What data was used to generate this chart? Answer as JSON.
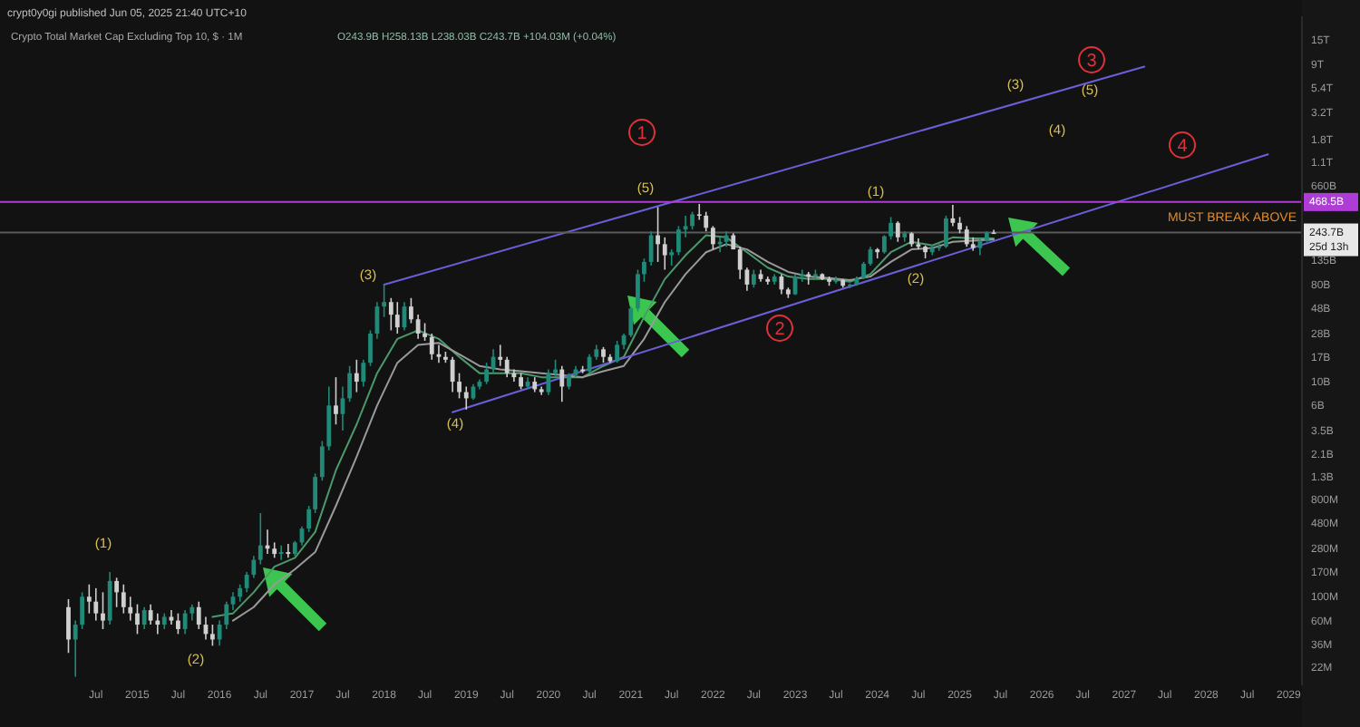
{
  "chart_data": {
    "type": "candlestick",
    "title": "Crypto Total Market Cap Excluding Top 10, $ · 1M",
    "subtitle": "crypt0y0gi published Jun 05, 2025 21:40 UTC+10",
    "log": true,
    "xlim": [
      "2013-05",
      "2029-03"
    ],
    "xticks": [
      {
        "value": "2014-07",
        "label": "Jul"
      },
      {
        "value": "2015-01",
        "label": "2015"
      },
      {
        "value": "2015-07",
        "label": "Jul"
      },
      {
        "value": "2016-01",
        "label": "2016"
      },
      {
        "value": "2016-07",
        "label": "Jul"
      },
      {
        "value": "2017-01",
        "label": "2017"
      },
      {
        "value": "2017-07",
        "label": "Jul"
      },
      {
        "value": "2018-01",
        "label": "2018"
      },
      {
        "value": "2018-07",
        "label": "Jul"
      },
      {
        "value": "2019-01",
        "label": "2019"
      },
      {
        "value": "2019-07",
        "label": "Jul"
      },
      {
        "value": "2020-01",
        "label": "2020"
      },
      {
        "value": "2020-07",
        "label": "Jul"
      },
      {
        "value": "2021-01",
        "label": "2021"
      },
      {
        "value": "2021-07",
        "label": "Jul"
      },
      {
        "value": "2022-01",
        "label": "2022"
      },
      {
        "value": "2022-07",
        "label": "Jul"
      },
      {
        "value": "2023-01",
        "label": "2023"
      },
      {
        "value": "2023-07",
        "label": "Jul"
      },
      {
        "value": "2024-01",
        "label": "2024"
      },
      {
        "value": "2024-07",
        "label": "Jul"
      },
      {
        "value": "2025-01",
        "label": "2025"
      },
      {
        "value": "2025-07",
        "label": "Jul"
      },
      {
        "value": "2026-01",
        "label": "2026"
      },
      {
        "value": "2026-07",
        "label": "Jul"
      },
      {
        "value": "2027-01",
        "label": "2027"
      },
      {
        "value": "2027-07",
        "label": "Jul"
      },
      {
        "value": "2028-01",
        "label": "2028"
      },
      {
        "value": "2028-07",
        "label": "Jul"
      },
      {
        "value": "2029-01",
        "label": "2029"
      }
    ],
    "ylim": [
      15000000.0,
      25000000000000.0
    ],
    "yticks": [
      {
        "value": 22000000.0,
        "label": "22M"
      },
      {
        "value": 36000000.0,
        "label": "36M"
      },
      {
        "value": 60000000.0,
        "label": "60M"
      },
      {
        "value": 100000000.0,
        "label": "100M"
      },
      {
        "value": 170000000.0,
        "label": "170M"
      },
      {
        "value": 280000000.0,
        "label": "280M"
      },
      {
        "value": 480000000.0,
        "label": "480M"
      },
      {
        "value": 800000000.0,
        "label": "800M"
      },
      {
        "value": 1300000000.0,
        "label": "1.3B"
      },
      {
        "value": 2100000000.0,
        "label": "2.1B"
      },
      {
        "value": 3500000000.0,
        "label": "3.5B"
      },
      {
        "value": 6000000000.0,
        "label": "6B"
      },
      {
        "value": 10000000000.0,
        "label": "10B"
      },
      {
        "value": 17000000000.0,
        "label": "17B"
      },
      {
        "value": 28000000000.0,
        "label": "28B"
      },
      {
        "value": 48000000000.0,
        "label": "48B"
      },
      {
        "value": 80000000000.0,
        "label": "80B"
      },
      {
        "value": 135000000000.0,
        "label": "135B"
      },
      {
        "value": 660000000000.0,
        "label": "660B"
      },
      {
        "value": 1100000000000.0,
        "label": "1.1T"
      },
      {
        "value": 1800000000000.0,
        "label": "1.8T"
      },
      {
        "value": 3200000000000.0,
        "label": "3.2T"
      },
      {
        "value": 5400000000000.0,
        "label": "5.4T"
      },
      {
        "value": 9000000000000.0,
        "label": "9T"
      },
      {
        "value": 15000000000000.0,
        "label": "15T"
      }
    ],
    "x": [
      "2014-03",
      "2014-04",
      "2014-05",
      "2014-06",
      "2014-07",
      "2014-08",
      "2014-09",
      "2014-10",
      "2014-11",
      "2014-12",
      "2015-01",
      "2015-02",
      "2015-03",
      "2015-04",
      "2015-05",
      "2015-06",
      "2015-07",
      "2015-08",
      "2015-09",
      "2015-10",
      "2015-11",
      "2015-12",
      "2016-01",
      "2016-02",
      "2016-03",
      "2016-04",
      "2016-05",
      "2016-06",
      "2016-07",
      "2016-08",
      "2016-09",
      "2016-10",
      "2016-11",
      "2016-12",
      "2017-01",
      "2017-02",
      "2017-03",
      "2017-04",
      "2017-05",
      "2017-06",
      "2017-07",
      "2017-08",
      "2017-09",
      "2017-10",
      "2017-11",
      "2017-12",
      "2018-01",
      "2018-02",
      "2018-03",
      "2018-04",
      "2018-05",
      "2018-06",
      "2018-07",
      "2018-08",
      "2018-09",
      "2018-10",
      "2018-11",
      "2018-12",
      "2019-01",
      "2019-02",
      "2019-03",
      "2019-04",
      "2019-05",
      "2019-06",
      "2019-07",
      "2019-08",
      "2019-09",
      "2019-10",
      "2019-11",
      "2019-12",
      "2020-01",
      "2020-02",
      "2020-03",
      "2020-04",
      "2020-05",
      "2020-06",
      "2020-07",
      "2020-08",
      "2020-09",
      "2020-10",
      "2020-11",
      "2020-12",
      "2021-01",
      "2021-02",
      "2021-03",
      "2021-04",
      "2021-05",
      "2021-06",
      "2021-07",
      "2021-08",
      "2021-09",
      "2021-10",
      "2021-11",
      "2021-12",
      "2022-01",
      "2022-02",
      "2022-03",
      "2022-04",
      "2022-05",
      "2022-06",
      "2022-07",
      "2022-08",
      "2022-09",
      "2022-10",
      "2022-11",
      "2022-12",
      "2023-01",
      "2023-02",
      "2023-03",
      "2023-04",
      "2023-05",
      "2023-06",
      "2023-07",
      "2023-08",
      "2023-09",
      "2023-10",
      "2023-11",
      "2023-12",
      "2024-01",
      "2024-02",
      "2024-03",
      "2024-04",
      "2024-05",
      "2024-06",
      "2024-07",
      "2024-08",
      "2024-09",
      "2024-10",
      "2024-11",
      "2024-12",
      "2025-01",
      "2025-02",
      "2025-03",
      "2025-04",
      "2025-05",
      "2025-06"
    ],
    "ohlc": [
      [
        80000000.0,
        95000000.0,
        30000000.0,
        40000000.0
      ],
      [
        40000000.0,
        60000000.0,
        18000000.0,
        55000000.0
      ],
      [
        55000000.0,
        110000000.0,
        50000000.0,
        100000000.0
      ],
      [
        100000000.0,
        130000000.0,
        70000000.0,
        90000000.0
      ],
      [
        90000000.0,
        120000000.0,
        60000000.0,
        70000000.0
      ],
      [
        70000000.0,
        110000000.0,
        50000000.0,
        60000000.0
      ],
      [
        60000000.0,
        170000000.0,
        55000000.0,
        140000000.0
      ],
      [
        140000000.0,
        150000000.0,
        80000000.0,
        110000000.0
      ],
      [
        110000000.0,
        130000000.0,
        70000000.0,
        80000000.0
      ],
      [
        80000000.0,
        100000000.0,
        60000000.0,
        70000000.0
      ],
      [
        70000000.0,
        85000000.0,
        45000000.0,
        55000000.0
      ],
      [
        55000000.0,
        80000000.0,
        50000000.0,
        75000000.0
      ],
      [
        75000000.0,
        85000000.0,
        55000000.0,
        60000000.0
      ],
      [
        60000000.0,
        70000000.0,
        45000000.0,
        55000000.0
      ],
      [
        55000000.0,
        70000000.0,
        50000000.0,
        65000000.0
      ],
      [
        65000000.0,
        75000000.0,
        55000000.0,
        60000000.0
      ],
      [
        60000000.0,
        70000000.0,
        45000000.0,
        50000000.0
      ],
      [
        50000000.0,
        75000000.0,
        45000000.0,
        70000000.0
      ],
      [
        70000000.0,
        85000000.0,
        60000000.0,
        80000000.0
      ],
      [
        80000000.0,
        90000000.0,
        50000000.0,
        55000000.0
      ],
      [
        55000000.0,
        65000000.0,
        40000000.0,
        45000000.0
      ],
      [
        45000000.0,
        55000000.0,
        35000000.0,
        40000000.0
      ],
      [
        40000000.0,
        60000000.0,
        35000000.0,
        55000000.0
      ],
      [
        55000000.0,
        90000000.0,
        50000000.0,
        85000000.0
      ],
      [
        85000000.0,
        110000000.0,
        75000000.0,
        100000000.0
      ],
      [
        100000000.0,
        130000000.0,
        90000000.0,
        120000000.0
      ],
      [
        120000000.0,
        170000000.0,
        110000000.0,
        160000000.0
      ],
      [
        160000000.0,
        240000000.0,
        150000000.0,
        220000000.0
      ],
      [
        220000000.0,
        600000000.0,
        200000000.0,
        300000000.0
      ],
      [
        300000000.0,
        420000000.0,
        250000000.0,
        280000000.0
      ],
      [
        280000000.0,
        320000000.0,
        230000000.0,
        250000000.0
      ],
      [
        250000000.0,
        300000000.0,
        220000000.0,
        260000000.0
      ],
      [
        260000000.0,
        310000000.0,
        230000000.0,
        250000000.0
      ],
      [
        250000000.0,
        330000000.0,
        240000000.0,
        320000000.0
      ],
      [
        320000000.0,
        450000000.0,
        300000000.0,
        430000000.0
      ],
      [
        430000000.0,
        700000000.0,
        400000000.0,
        650000000.0
      ],
      [
        650000000.0,
        1400000000.0,
        600000000.0,
        1300000000.0
      ],
      [
        1300000000.0,
        2800000000.0,
        1200000000.0,
        2500000000.0
      ],
      [
        2500000000.0,
        9000000000.0,
        2300000000.0,
        6000000000.0
      ],
      [
        6000000000.0,
        11000000000.0,
        4000000000.0,
        5000000000.0
      ],
      [
        5000000000.0,
        9000000000.0,
        3500000000.0,
        7000000000.0
      ],
      [
        7000000000.0,
        14000000000.0,
        6500000000.0,
        12000000000.0
      ],
      [
        12000000000.0,
        16000000000.0,
        8000000000.0,
        10000000000.0
      ],
      [
        10000000000.0,
        16000000000.0,
        9000000000.0,
        15000000000.0
      ],
      [
        15000000000.0,
        30000000000.0,
        14000000000.0,
        28000000000.0
      ],
      [
        28000000000.0,
        55000000000.0,
        25000000000.0,
        50000000000.0
      ],
      [
        50000000000.0,
        80000000000.0,
        40000000000.0,
        55000000000.0
      ],
      [
        55000000000.0,
        60000000000.0,
        30000000000.0,
        42000000000.0
      ],
      [
        42000000000.0,
        55000000000.0,
        28000000000.0,
        32000000000.0
      ],
      [
        32000000000.0,
        55000000000.0,
        30000000000.0,
        50000000000.0
      ],
      [
        50000000000.0,
        60000000000.0,
        35000000000.0,
        38000000000.0
      ],
      [
        38000000000.0,
        42000000000.0,
        25000000000.0,
        28000000000.0
      ],
      [
        28000000000.0,
        35000000000.0,
        24000000000.0,
        26000000000.0
      ],
      [
        26000000000.0,
        28000000000.0,
        16000000000.0,
        18000000000.0
      ],
      [
        18000000000.0,
        22000000000.0,
        15000000000.0,
        17000000000.0
      ],
      [
        17000000000.0,
        19000000000.0,
        15000000000.0,
        16000000000.0
      ],
      [
        16000000000.0,
        17000000000.0,
        8000000000.0,
        10000000000.0
      ],
      [
        10000000000.0,
        12000000000.0,
        7000000000.0,
        8000000000.0
      ],
      [
        8000000000.0,
        9000000000.0,
        5500000000.0,
        7000000000.0
      ],
      [
        7000000000.0,
        9500000000.0,
        6800000000.0,
        9000000000.0
      ],
      [
        9000000000.0,
        10500000000.0,
        8500000000.0,
        10000000000.0
      ],
      [
        10000000000.0,
        15000000000.0,
        9500000000.0,
        13000000000.0
      ],
      [
        13000000000.0,
        20000000000.0,
        12000000000.0,
        17000000000.0
      ],
      [
        17000000000.0,
        22000000000.0,
        14000000000.0,
        16000000000.0
      ],
      [
        16000000000.0,
        17000000000.0,
        11000000000.0,
        12000000000.0
      ],
      [
        12000000000.0,
        13000000000.0,
        10000000000.0,
        11000000000.0
      ],
      [
        11000000000.0,
        12000000000.0,
        8500000000.0,
        9000000000.0
      ],
      [
        9000000000.0,
        11000000000.0,
        8500000000.0,
        10000000000.0
      ],
      [
        10000000000.0,
        11000000000.0,
        8000000000.0,
        8500000000.0
      ],
      [
        8500000000.0,
        9000000000.0,
        7500000000.0,
        8000000000.0
      ],
      [
        8000000000.0,
        13000000000.0,
        7500000000.0,
        12000000000.0
      ],
      [
        12000000000.0,
        16000000000.0,
        11000000000.0,
        13000000000.0
      ],
      [
        13000000000.0,
        14000000000.0,
        6500000000.0,
        9000000000.0
      ],
      [
        9000000000.0,
        12000000000.0,
        8500000000.0,
        11500000000.0
      ],
      [
        11500000000.0,
        14000000000.0,
        11000000000.0,
        13000000000.0
      ],
      [
        13000000000.0,
        14000000000.0,
        12000000000.0,
        12500000000.0
      ],
      [
        12500000000.0,
        18000000000.0,
        12000000000.0,
        17000000000.0
      ],
      [
        17000000000.0,
        22000000000.0,
        16000000000.0,
        20000000000.0
      ],
      [
        20000000000.0,
        21000000000.0,
        15000000000.0,
        17000000000.0
      ],
      [
        17000000000.0,
        18000000000.0,
        15000000000.0,
        15500000000.0
      ],
      [
        15500000000.0,
        24000000000.0,
        15000000000.0,
        22000000000.0
      ],
      [
        22000000000.0,
        28000000000.0,
        20000000000.0,
        27000000000.0
      ],
      [
        27000000000.0,
        50000000000.0,
        26000000000.0,
        48000000000.0
      ],
      [
        48000000000.0,
        110000000000.0,
        45000000000.0,
        100000000000.0
      ],
      [
        100000000000.0,
        140000000000.0,
        85000000000.0,
        130000000000.0
      ],
      [
        130000000000.0,
        250000000000.0,
        120000000000.0,
        230000000000.0
      ],
      [
        230000000000.0,
        420000000000.0,
        130000000000.0,
        190000000000.0
      ],
      [
        190000000000.0,
        220000000000.0,
        110000000000.0,
        150000000000.0
      ],
      [
        150000000000.0,
        170000000000.0,
        120000000000.0,
        160000000000.0
      ],
      [
        160000000000.0,
        280000000000.0,
        150000000000.0,
        260000000000.0
      ],
      [
        260000000000.0,
        350000000000.0,
        220000000000.0,
        280000000000.0
      ],
      [
        280000000000.0,
        380000000000.0,
        260000000000.0,
        360000000000.0
      ],
      [
        360000000000.0,
        450000000000.0,
        320000000000.0,
        350000000000.0
      ],
      [
        350000000000.0,
        380000000000.0,
        250000000000.0,
        270000000000.0
      ],
      [
        270000000000.0,
        280000000000.0,
        170000000000.0,
        190000000000.0
      ],
      [
        190000000000.0,
        220000000000.0,
        160000000000.0,
        200000000000.0
      ],
      [
        200000000000.0,
        250000000000.0,
        180000000000.0,
        230000000000.0
      ],
      [
        230000000000.0,
        240000000000.0,
        170000000000.0,
        170000000000.0
      ],
      [
        170000000000.0,
        180000000000.0,
        90000000000.0,
        110000000000.0
      ],
      [
        110000000000.0,
        115000000000.0,
        70000000000.0,
        80000000000.0
      ],
      [
        80000000000.0,
        110000000000.0,
        75000000000.0,
        100000000000.0
      ],
      [
        100000000000.0,
        110000000000.0,
        85000000000.0,
        90000000000.0
      ],
      [
        90000000000.0,
        95000000000.0,
        80000000000.0,
        85000000000.0
      ],
      [
        85000000000.0,
        100000000000.0,
        80000000000.0,
        95000000000.0
      ],
      [
        95000000000.0,
        100000000000.0,
        65000000000.0,
        72000000000.0
      ],
      [
        72000000000.0,
        75000000000.0,
        60000000000.0,
        65000000000.0
      ],
      [
        65000000000.0,
        100000000000.0,
        64000000000.0,
        95000000000.0
      ],
      [
        95000000000.0,
        110000000000.0,
        85000000000.0,
        100000000000.0
      ],
      [
        100000000000.0,
        105000000000.0,
        80000000000.0,
        95000000000.0
      ],
      [
        95000000000.0,
        110000000000.0,
        90000000000.0,
        100000000000.0
      ],
      [
        100000000000.0,
        102000000000.0,
        88000000000.0,
        90000000000.0
      ],
      [
        90000000000.0,
        95000000000.0,
        78000000000.0,
        85000000000.0
      ],
      [
        85000000000.0,
        95000000000.0,
        82000000000.0,
        88000000000.0
      ],
      [
        88000000000.0,
        90000000000.0,
        75000000000.0,
        78000000000.0
      ],
      [
        78000000000.0,
        82000000000.0,
        74000000000.0,
        80000000000.0
      ],
      [
        80000000000.0,
        95000000000.0,
        78000000000.0,
        92000000000.0
      ],
      [
        92000000000.0,
        130000000000.0,
        90000000000.0,
        125000000000.0
      ],
      [
        125000000000.0,
        180000000000.0,
        120000000000.0,
        170000000000.0
      ],
      [
        170000000000.0,
        175000000000.0,
        140000000000.0,
        160000000000.0
      ],
      [
        160000000000.0,
        230000000000.0,
        155000000000.0,
        225000000000.0
      ],
      [
        225000000000.0,
        340000000000.0,
        210000000000.0,
        300000000000.0
      ],
      [
        300000000000.0,
        310000000000.0,
        200000000000.0,
        220000000000.0
      ],
      [
        220000000000.0,
        250000000000.0,
        200000000000.0,
        240000000000.0
      ],
      [
        240000000000.0,
        245000000000.0,
        180000000000.0,
        190000000000.0
      ],
      [
        190000000000.0,
        215000000000.0,
        170000000000.0,
        180000000000.0
      ],
      [
        180000000000.0,
        185000000000.0,
        140000000000.0,
        160000000000.0
      ],
      [
        160000000000.0,
        185000000000.0,
        150000000000.0,
        175000000000.0
      ],
      [
        175000000000.0,
        195000000000.0,
        165000000000.0,
        180000000000.0
      ],
      [
        180000000000.0,
        350000000000.0,
        175000000000.0,
        330000000000.0
      ],
      [
        330000000000.0,
        440000000000.0,
        280000000000.0,
        300000000000.0
      ],
      [
        300000000000.0,
        340000000000.0,
        240000000000.0,
        260000000000.0
      ],
      [
        260000000000.0,
        280000000000.0,
        180000000000.0,
        190000000000.0
      ],
      [
        190000000000.0,
        220000000000.0,
        165000000000.0,
        175000000000.0
      ],
      [
        175000000000.0,
        215000000000.0,
        150000000000.0,
        205000000000.0
      ],
      [
        205000000000.0,
        250000000000.0,
        200000000000.0,
        244000000000.0
      ],
      [
        243900000000.0,
        258130000000.0,
        238030000000.0,
        243700000000.0
      ]
    ],
    "series": [
      {
        "type": "line",
        "color": "#4c9a6c",
        "x": [
          "2015-12",
          "2016-03",
          "2016-06",
          "2016-09",
          "2016-12",
          "2017-03",
          "2017-06",
          "2017-09",
          "2017-12",
          "2018-03",
          "2018-06",
          "2018-09",
          "2018-12",
          "2019-03",
          "2019-06",
          "2019-09",
          "2019-12",
          "2020-03",
          "2020-06",
          "2020-09",
          "2020-12",
          "2021-03",
          "2021-06",
          "2021-09",
          "2021-12",
          "2022-03",
          "2022-06",
          "2022-09",
          "2022-12",
          "2023-03",
          "2023-06",
          "2023-09",
          "2023-12",
          "2024-03",
          "2024-06",
          "2024-09",
          "2024-12",
          "2025-03",
          "2025-06"
        ],
        "values": [
          65000000.0,
          70000000.0,
          110000000.0,
          190000000.0,
          230000000.0,
          400000000.0,
          1500000000.0,
          4000000000.0,
          12000000000.0,
          25000000000.0,
          30000000000.0,
          25000000000.0,
          17000000000.0,
          12000000000.0,
          12000000000.0,
          12000000000.0,
          11000000000.0,
          11000000000.0,
          11000000000.0,
          14000000000.0,
          17000000000.0,
          40000000000.0,
          90000000000.0,
          150000000000.0,
          230000000000.0,
          220000000000.0,
          160000000000.0,
          115000000000.0,
          95000000000.0,
          90000000000.0,
          90000000000.0,
          85000000000.0,
          100000000000.0,
          160000000000.0,
          200000000000.0,
          185000000000.0,
          220000000000.0,
          215000000000.0,
          215000000000.0
        ]
      },
      {
        "type": "line",
        "color": "#9a9a9a",
        "x": [
          "2016-03",
          "2016-06",
          "2016-09",
          "2016-12",
          "2017-03",
          "2017-06",
          "2017-09",
          "2017-12",
          "2018-03",
          "2018-06",
          "2018-09",
          "2018-12",
          "2019-03",
          "2019-06",
          "2019-09",
          "2019-12",
          "2020-03",
          "2020-06",
          "2020-09",
          "2020-12",
          "2021-03",
          "2021-06",
          "2021-09",
          "2021-12",
          "2022-03",
          "2022-06",
          "2022-09",
          "2022-12",
          "2023-03",
          "2023-06",
          "2023-09",
          "2023-12",
          "2024-03",
          "2024-06",
          "2024-09",
          "2024-12",
          "2025-03",
          "2025-06"
        ],
        "values": [
          60000000.0,
          80000000.0,
          130000000.0,
          180000000.0,
          260000000.0,
          700000000.0,
          2000000000.0,
          6000000000.0,
          15000000000.0,
          22000000000.0,
          23000000000.0,
          18000000000.0,
          14000000000.0,
          13000000000.0,
          12500000000.0,
          12000000000.0,
          11500000000.0,
          11000000000.0,
          12500000000.0,
          14000000000.0,
          25000000000.0,
          55000000000.0,
          100000000000.0,
          160000000000.0,
          190000000000.0,
          170000000000.0,
          130000000000.0,
          105000000000.0,
          95000000000.0,
          92000000000.0,
          88000000000.0,
          95000000000.0,
          130000000000.0,
          170000000000.0,
          175000000000.0,
          200000000000.0,
          205000000000.0,
          210000000000.0
        ]
      },
      {
        "type": "line",
        "color": "#6a5fd8",
        "x": [
          "2018-01",
          "2027-04"
        ],
        "values": [
          80000000000.0,
          8500000000000.0
        ]
      },
      {
        "type": "line",
        "color": "#6a5fd8",
        "x": [
          "2018-11",
          "2028-10"
        ],
        "values": [
          5200000000.0,
          1300000000000.0
        ]
      }
    ],
    "ref_lines": [
      {
        "axis": "y",
        "value": 468500000000.0,
        "label": "468.5B",
        "color": "#b03cd8"
      },
      {
        "axis": "y",
        "value": 243700000000.0,
        "label": "243.7B\n25d 13h",
        "color": "#5a5a5a"
      }
    ],
    "annotations": [
      "O243.9B H258.13B L238.03B C243.7B +104.03M (+0.04%)",
      "MUST BREAK ABOVE",
      "(1)",
      "(2)",
      "(3)",
      "(4)",
      "(5)",
      "(1)",
      "(2)",
      "(3)",
      "(4)",
      "(5)",
      "1",
      "2",
      "3",
      "4"
    ]
  }
}
